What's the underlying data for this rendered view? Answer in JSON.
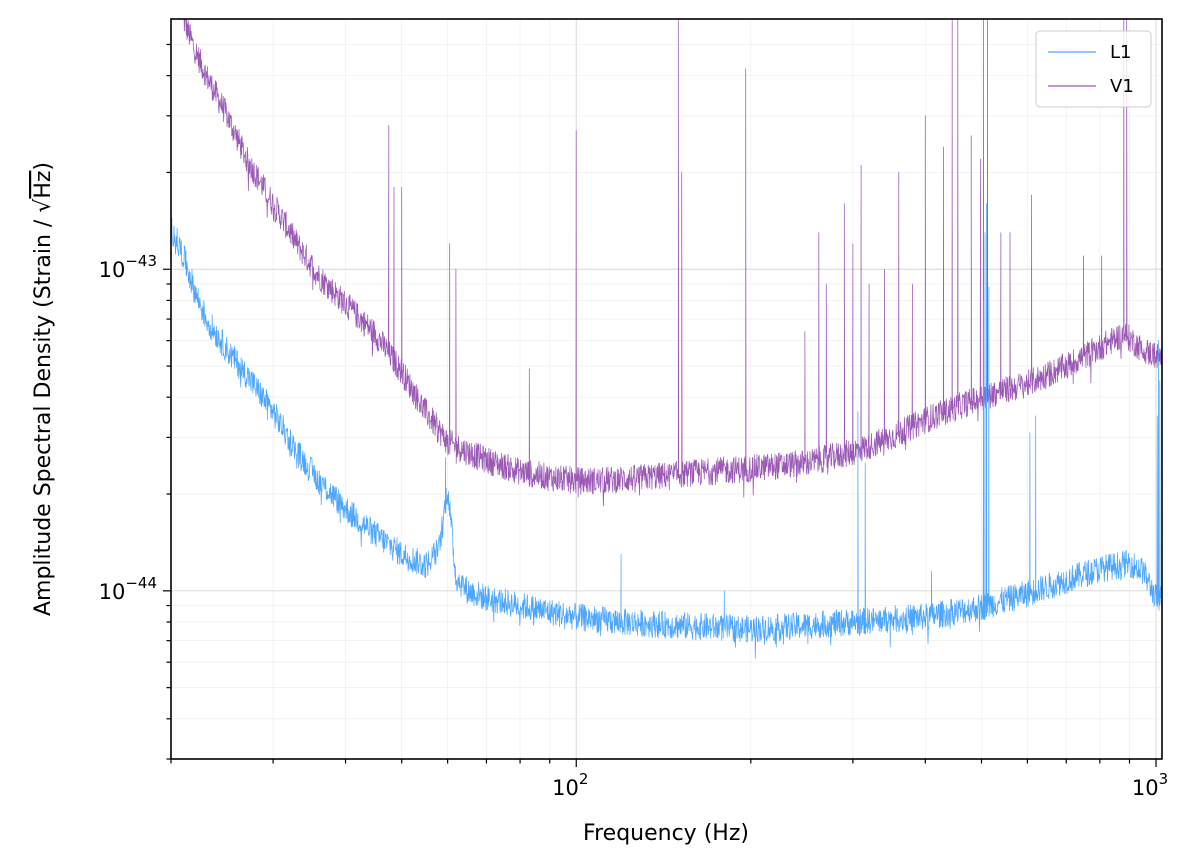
{
  "chart_data": {
    "type": "line",
    "title": "",
    "xlabel": "Frequency (Hz)",
    "ylabel_prefix": "Amplitude Spectral Density (Strain / ",
    "ylabel_root": "√",
    "ylabel_unit": "Hz",
    "ylabel_suffix": ")",
    "xscale": "log",
    "yscale": "log",
    "xlim": [
      20,
      1024
    ],
    "ylim": [
      3e-45,
      6e-43
    ],
    "grid": true,
    "legend_position": "top-right",
    "x_ticks": [
      {
        "value": 100,
        "base": "10",
        "exp": "2"
      },
      {
        "value": 1000,
        "base": "10",
        "exp": "3"
      }
    ],
    "y_ticks": [
      {
        "value": 1e-44,
        "base": "10",
        "exp": "−44"
      },
      {
        "value": 1e-43,
        "base": "10",
        "exp": "−43"
      }
    ],
    "series": [
      {
        "name": "L1",
        "color": "#4da6ff",
        "baseline": [
          [
            20,
            1.35e-43
          ],
          [
            21,
            1.1e-43
          ],
          [
            22,
            8.5e-44
          ],
          [
            23,
            7e-44
          ],
          [
            25,
            5.6e-44
          ],
          [
            27,
            4.7e-44
          ],
          [
            30,
            3.6e-44
          ],
          [
            33,
            2.7e-44
          ],
          [
            36,
            2.2e-44
          ],
          [
            40,
            1.8e-44
          ],
          [
            45,
            1.5e-44
          ],
          [
            50,
            1.3e-44
          ],
          [
            55,
            1.2e-44
          ],
          [
            58,
            1.35e-44
          ],
          [
            60,
            2.1e-44
          ],
          [
            62,
            1.1e-44
          ],
          [
            65,
            1e-44
          ],
          [
            70,
            9.5e-45
          ],
          [
            80,
            9e-45
          ],
          [
            90,
            8.6e-45
          ],
          [
            100,
            8.3e-45
          ],
          [
            120,
            8e-45
          ],
          [
            150,
            7.8e-45
          ],
          [
            200,
            7.6e-45
          ],
          [
            250,
            7.8e-45
          ],
          [
            300,
            8e-45
          ],
          [
            400,
            8.3e-45
          ],
          [
            500,
            8.9e-45
          ],
          [
            600,
            9.8e-45
          ],
          [
            700,
            1.08e-44
          ],
          [
            800,
            1.17e-44
          ],
          [
            900,
            1.22e-44
          ],
          [
            950,
            1.15e-44
          ],
          [
            1000,
            9.5e-45
          ],
          [
            1024,
            9.5e-45
          ]
        ],
        "peaks": [
          [
            59.5,
            2.6e-44
          ],
          [
            119.5,
            1.3e-44
          ],
          [
            180,
            1e-44
          ],
          [
            306,
            3.6e-44
          ],
          [
            315,
            2.5e-44
          ],
          [
            410,
            1.15e-44
          ],
          [
            504,
            8e-44
          ],
          [
            507,
            1.3e-43
          ],
          [
            510,
            1.6e-43
          ],
          [
            515,
            8.8e-44
          ],
          [
            606,
            3.1e-44
          ],
          [
            620,
            3.5e-44
          ],
          [
            1005,
            3.5e-44
          ],
          [
            1010,
            6e-44
          ],
          [
            1015,
            4.5e-44
          ]
        ]
      },
      {
        "name": "V1",
        "color": "#9b59b6",
        "baseline": [
          [
            21,
            6e-43
          ],
          [
            22,
            4.8e-43
          ],
          [
            23,
            4e-43
          ],
          [
            25,
            3e-43
          ],
          [
            27,
            2.2e-43
          ],
          [
            30,
            1.6e-43
          ],
          [
            33,
            1.2e-43
          ],
          [
            36,
            9.5e-44
          ],
          [
            40,
            7.8e-44
          ],
          [
            45,
            6.3e-44
          ],
          [
            50,
            4.8e-44
          ],
          [
            55,
            3.6e-44
          ],
          [
            60,
            2.9e-44
          ],
          [
            65,
            2.7e-44
          ],
          [
            70,
            2.55e-44
          ],
          [
            80,
            2.35e-44
          ],
          [
            90,
            2.25e-44
          ],
          [
            100,
            2.2e-44
          ],
          [
            110,
            2.2e-44
          ],
          [
            130,
            2.25e-44
          ],
          [
            150,
            2.3e-44
          ],
          [
            170,
            2.35e-44
          ],
          [
            200,
            2.4e-44
          ],
          [
            250,
            2.5e-44
          ],
          [
            300,
            2.7e-44
          ],
          [
            350,
            3e-44
          ],
          [
            400,
            3.4e-44
          ],
          [
            450,
            3.7e-44
          ],
          [
            500,
            4e-44
          ],
          [
            600,
            4.4e-44
          ],
          [
            700,
            5e-44
          ],
          [
            800,
            5.7e-44
          ],
          [
            880,
            6.3e-44
          ],
          [
            950,
            5.6e-44
          ],
          [
            1024,
            5.3e-44
          ]
        ],
        "peaks": [
          [
            47.5,
            2.8e-43
          ],
          [
            48.5,
            1.8e-43
          ],
          [
            50,
            1.8e-43
          ],
          [
            60.5,
            1.2e-43
          ],
          [
            62,
            1e-43
          ],
          [
            83,
            4.9e-44
          ],
          [
            100,
            2.7e-43
          ],
          [
            150,
            6e-43
          ],
          [
            152,
            2e-43
          ],
          [
            196,
            4.2e-43
          ],
          [
            248,
            6.4e-44
          ],
          [
            262,
            1.3e-43
          ],
          [
            270,
            9e-44
          ],
          [
            290,
            1.6e-43
          ],
          [
            300,
            1.2e-43
          ],
          [
            310,
            2.1e-43
          ],
          [
            320,
            9e-44
          ],
          [
            340,
            1e-43
          ],
          [
            360,
            2e-43
          ],
          [
            380,
            9e-44
          ],
          [
            400,
            3e-43
          ],
          [
            430,
            2.4e-43
          ],
          [
            445,
            6e-43
          ],
          [
            455,
            6e-43
          ],
          [
            480,
            2.6e-43
          ],
          [
            498,
            2.2e-43
          ],
          [
            504,
            6e-43
          ],
          [
            512,
            6e-43
          ],
          [
            540,
            1.3e-43
          ],
          [
            560,
            1.3e-43
          ],
          [
            610,
            1.7e-43
          ],
          [
            750,
            1.1e-43
          ],
          [
            806,
            1.1e-43
          ],
          [
            880,
            6e-43
          ],
          [
            890,
            6e-43
          ]
        ]
      }
    ]
  }
}
